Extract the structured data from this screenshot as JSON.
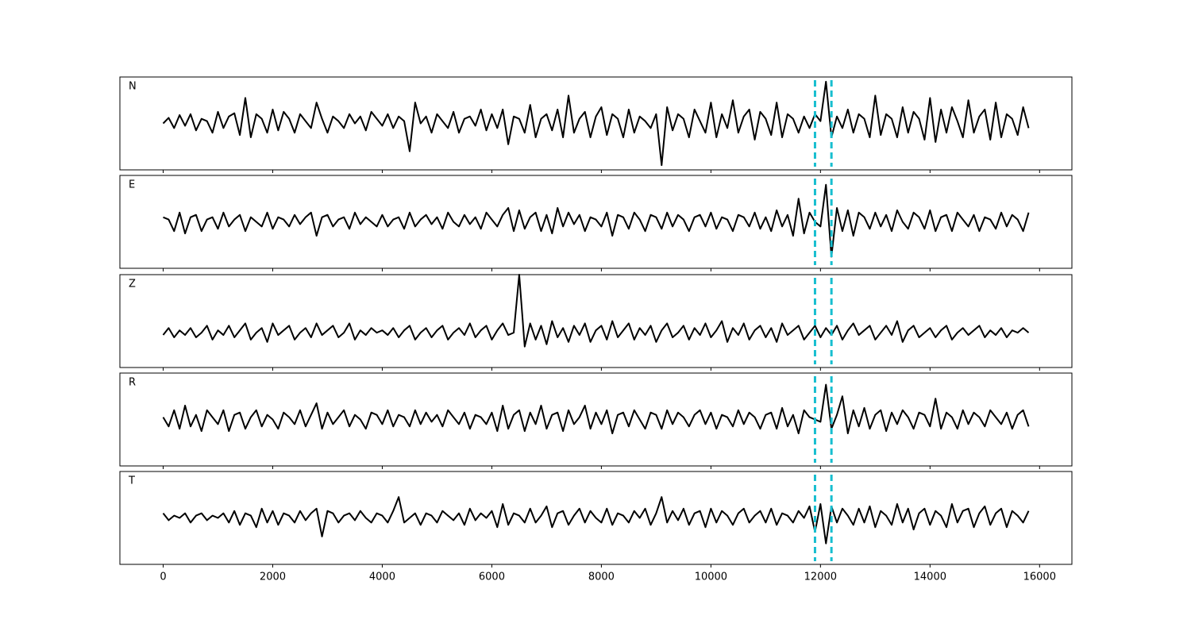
{
  "chart_data": {
    "type": "line",
    "x": [
      0,
      100,
      200,
      300,
      400,
      500,
      600,
      700,
      800,
      900,
      1000,
      1100,
      1200,
      1300,
      1400,
      1500,
      1600,
      1700,
      1800,
      1900,
      2000,
      2100,
      2200,
      2300,
      2400,
      2500,
      2600,
      2700,
      2800,
      2900,
      3000,
      3100,
      3200,
      3300,
      3400,
      3500,
      3600,
      3700,
      3800,
      3900,
      4000,
      4100,
      4200,
      4300,
      4400,
      4500,
      4600,
      4700,
      4800,
      4900,
      5000,
      5100,
      5200,
      5300,
      5400,
      5500,
      5600,
      5700,
      5800,
      5900,
      6000,
      6100,
      6200,
      6300,
      6400,
      6500,
      6600,
      6700,
      6800,
      6900,
      7000,
      7100,
      7200,
      7300,
      7400,
      7500,
      7600,
      7700,
      7800,
      7900,
      8000,
      8100,
      8200,
      8300,
      8400,
      8500,
      8600,
      8700,
      8800,
      8900,
      9000,
      9100,
      9200,
      9300,
      9400,
      9500,
      9600,
      9700,
      9800,
      9900,
      10000,
      10100,
      10200,
      10300,
      10400,
      10500,
      10600,
      10700,
      10800,
      10900,
      11000,
      11100,
      11200,
      11300,
      11400,
      11500,
      11600,
      11700,
      11800,
      11900,
      12000,
      12100,
      12200,
      12300,
      12400,
      12500,
      12600,
      12700,
      12800,
      12900,
      13000,
      13100,
      13200,
      13300,
      13400,
      13500,
      13600,
      13700,
      13800,
      13900,
      14000,
      14100,
      14200,
      14300,
      14400,
      14500,
      14600,
      14700,
      14800,
      14900,
      15000,
      15100,
      15200,
      15300,
      15400,
      15500,
      15600,
      15700,
      15800
    ],
    "xlim": [
      -790,
      16590
    ],
    "xticks": [
      0,
      2000,
      4000,
      6000,
      8000,
      10000,
      12000,
      14000,
      16000
    ],
    "ylim": [
      -1,
      1
    ],
    "vlines": [
      11900,
      12200
    ],
    "vline_color": "#17becf",
    "series": [
      {
        "name": "N",
        "color": "#000000",
        "values": [
          0.0,
          0.12,
          -0.1,
          0.18,
          -0.05,
          0.2,
          -0.15,
          0.1,
          0.05,
          -0.2,
          0.25,
          -0.1,
          0.15,
          0.22,
          -0.25,
          0.55,
          -0.3,
          0.2,
          0.1,
          -0.2,
          0.3,
          -0.15,
          0.25,
          0.1,
          -0.2,
          0.2,
          0.05,
          -0.1,
          0.45,
          0.1,
          -0.2,
          0.15,
          0.05,
          -0.1,
          0.2,
          0.0,
          0.15,
          -0.15,
          0.25,
          0.1,
          -0.05,
          0.2,
          -0.1,
          0.15,
          0.05,
          -0.6,
          0.45,
          0.0,
          0.15,
          -0.2,
          0.2,
          0.05,
          -0.1,
          0.25,
          -0.2,
          0.1,
          0.15,
          -0.05,
          0.3,
          -0.15,
          0.2,
          -0.1,
          0.3,
          -0.45,
          0.15,
          0.1,
          -0.2,
          0.4,
          -0.3,
          0.1,
          0.2,
          -0.15,
          0.3,
          -0.3,
          0.6,
          -0.2,
          0.1,
          0.25,
          -0.3,
          0.15,
          0.35,
          -0.25,
          0.2,
          0.1,
          -0.3,
          0.3,
          -0.2,
          0.15,
          0.05,
          -0.1,
          0.2,
          -0.9,
          0.35,
          -0.15,
          0.2,
          0.1,
          -0.3,
          0.3,
          0.05,
          -0.2,
          0.45,
          -0.3,
          0.2,
          -0.1,
          0.5,
          -0.2,
          0.15,
          0.3,
          -0.35,
          0.25,
          0.1,
          -0.25,
          0.45,
          -0.3,
          0.2,
          0.1,
          -0.2,
          0.15,
          -0.1,
          0.2,
          0.05,
          0.9,
          -0.3,
          0.15,
          -0.1,
          0.3,
          -0.2,
          0.2,
          0.1,
          -0.3,
          0.6,
          -0.25,
          0.2,
          0.1,
          -0.3,
          0.35,
          -0.2,
          0.25,
          0.1,
          -0.35,
          0.55,
          -0.4,
          0.3,
          -0.2,
          0.35,
          0.05,
          -0.3,
          0.5,
          -0.2,
          0.15,
          0.3,
          -0.35,
          0.45,
          -0.3,
          0.2,
          0.1,
          -0.25,
          0.35,
          -0.1
        ]
      },
      {
        "name": "E",
        "color": "#000000",
        "values": [
          0.1,
          0.05,
          -0.2,
          0.2,
          -0.25,
          0.1,
          0.15,
          -0.2,
          0.05,
          0.1,
          -0.15,
          0.2,
          -0.1,
          0.05,
          0.15,
          -0.2,
          0.1,
          0.0,
          -0.1,
          0.2,
          -0.15,
          0.1,
          0.05,
          -0.1,
          0.15,
          -0.05,
          0.1,
          0.2,
          -0.3,
          0.1,
          0.15,
          -0.1,
          0.05,
          0.1,
          -0.15,
          0.2,
          -0.05,
          0.1,
          0.0,
          -0.1,
          0.15,
          -0.1,
          0.05,
          0.1,
          -0.15,
          0.2,
          -0.1,
          0.05,
          0.15,
          -0.05,
          0.1,
          -0.15,
          0.2,
          0.0,
          -0.1,
          0.15,
          -0.05,
          0.1,
          -0.15,
          0.2,
          0.05,
          -0.1,
          0.15,
          0.3,
          -0.2,
          0.25,
          -0.15,
          0.1,
          0.2,
          -0.2,
          0.15,
          -0.25,
          0.3,
          -0.1,
          0.2,
          -0.05,
          0.15,
          -0.2,
          0.1,
          0.05,
          -0.1,
          0.2,
          -0.3,
          0.15,
          0.1,
          -0.15,
          0.2,
          0.05,
          -0.2,
          0.15,
          0.1,
          -0.15,
          0.2,
          -0.1,
          0.15,
          0.05,
          -0.2,
          0.1,
          0.15,
          -0.1,
          0.2,
          -0.15,
          0.1,
          0.05,
          -0.2,
          0.15,
          0.1,
          -0.1,
          0.2,
          -0.15,
          0.1,
          -0.2,
          0.25,
          -0.1,
          0.15,
          -0.3,
          0.5,
          -0.25,
          0.2,
          0.0,
          -0.1,
          0.8,
          -0.75,
          0.3,
          -0.2,
          0.25,
          -0.3,
          0.2,
          0.1,
          -0.15,
          0.2,
          -0.1,
          0.15,
          -0.2,
          0.25,
          0.0,
          -0.15,
          0.2,
          0.1,
          -0.15,
          0.25,
          -0.2,
          0.1,
          0.15,
          -0.2,
          0.2,
          0.05,
          -0.1,
          0.15,
          -0.2,
          0.1,
          0.05,
          -0.15,
          0.2,
          -0.1,
          0.15,
          0.05,
          -0.2,
          0.2
        ]
      },
      {
        "name": "Z",
        "color": "#000000",
        "values": [
          -0.3,
          -0.15,
          -0.35,
          -0.2,
          -0.3,
          -0.15,
          -0.35,
          -0.25,
          -0.1,
          -0.4,
          -0.2,
          -0.3,
          -0.1,
          -0.35,
          -0.2,
          -0.05,
          -0.4,
          -0.25,
          -0.15,
          -0.45,
          -0.05,
          -0.3,
          -0.2,
          -0.1,
          -0.4,
          -0.25,
          -0.15,
          -0.35,
          -0.05,
          -0.3,
          -0.2,
          -0.1,
          -0.35,
          -0.25,
          -0.05,
          -0.4,
          -0.2,
          -0.3,
          -0.15,
          -0.25,
          -0.2,
          -0.3,
          -0.15,
          -0.35,
          -0.2,
          -0.1,
          -0.4,
          -0.25,
          -0.15,
          -0.35,
          -0.2,
          -0.1,
          -0.4,
          -0.25,
          -0.15,
          -0.3,
          -0.05,
          -0.35,
          -0.2,
          -0.1,
          -0.4,
          -0.2,
          -0.05,
          -0.3,
          -0.25,
          1.0,
          -0.55,
          -0.05,
          -0.4,
          -0.1,
          -0.5,
          0.0,
          -0.35,
          -0.15,
          -0.45,
          -0.1,
          -0.3,
          -0.05,
          -0.45,
          -0.2,
          -0.1,
          -0.4,
          0.0,
          -0.35,
          -0.2,
          -0.05,
          -0.4,
          -0.15,
          -0.3,
          -0.1,
          -0.45,
          -0.2,
          -0.05,
          -0.35,
          -0.25,
          -0.1,
          -0.4,
          -0.15,
          -0.3,
          -0.05,
          -0.35,
          -0.2,
          0.0,
          -0.45,
          -0.15,
          -0.3,
          -0.05,
          -0.4,
          -0.2,
          -0.1,
          -0.35,
          -0.15,
          -0.45,
          -0.05,
          -0.3,
          -0.2,
          -0.1,
          -0.4,
          -0.25,
          -0.1,
          -0.35,
          -0.15,
          -0.3,
          -0.1,
          -0.4,
          -0.2,
          -0.05,
          -0.3,
          -0.2,
          -0.1,
          -0.4,
          -0.25,
          -0.1,
          -0.3,
          0.0,
          -0.45,
          -0.2,
          -0.1,
          -0.35,
          -0.25,
          -0.15,
          -0.35,
          -0.2,
          -0.1,
          -0.4,
          -0.25,
          -0.15,
          -0.3,
          -0.2,
          -0.1,
          -0.35,
          -0.2,
          -0.3,
          -0.15,
          -0.35,
          -0.2,
          -0.25,
          -0.15,
          -0.25
        ]
      },
      {
        "name": "R",
        "color": "#000000",
        "values": [
          0.05,
          -0.15,
          0.2,
          -0.2,
          0.3,
          -0.15,
          0.1,
          -0.25,
          0.2,
          0.05,
          -0.1,
          0.2,
          -0.25,
          0.1,
          0.15,
          -0.2,
          0.05,
          0.2,
          -0.15,
          0.1,
          0.0,
          -0.2,
          0.15,
          0.05,
          -0.1,
          0.2,
          -0.15,
          0.1,
          0.35,
          -0.2,
          0.15,
          -0.1,
          0.05,
          0.2,
          -0.15,
          0.1,
          0.0,
          -0.2,
          0.15,
          0.1,
          -0.1,
          0.2,
          -0.15,
          0.1,
          0.05,
          -0.15,
          0.2,
          -0.1,
          0.15,
          -0.05,
          0.1,
          -0.15,
          0.2,
          0.05,
          -0.1,
          0.15,
          -0.2,
          0.1,
          0.05,
          -0.1,
          0.15,
          -0.25,
          0.3,
          -0.2,
          0.1,
          0.2,
          -0.25,
          0.15,
          -0.1,
          0.3,
          -0.2,
          0.1,
          0.15,
          -0.25,
          0.2,
          -0.1,
          0.05,
          0.3,
          -0.2,
          0.15,
          -0.1,
          0.2,
          -0.3,
          0.1,
          0.15,
          -0.15,
          0.2,
          0.0,
          -0.2,
          0.15,
          0.1,
          -0.2,
          0.2,
          -0.1,
          0.15,
          0.05,
          -0.15,
          0.1,
          0.2,
          -0.1,
          0.15,
          -0.2,
          0.1,
          0.05,
          -0.15,
          0.2,
          -0.1,
          0.15,
          0.05,
          -0.2,
          0.1,
          0.15,
          -0.2,
          0.25,
          -0.15,
          0.1,
          -0.3,
          0.2,
          0.05,
          0.0,
          -0.05,
          0.75,
          -0.2,
          0.1,
          0.5,
          -0.3,
          0.2,
          -0.15,
          0.25,
          -0.2,
          0.1,
          0.2,
          -0.25,
          0.15,
          -0.1,
          0.2,
          0.05,
          -0.2,
          0.15,
          0.1,
          -0.15,
          0.45,
          -0.2,
          0.15,
          0.05,
          -0.2,
          0.2,
          -0.1,
          0.15,
          0.05,
          -0.15,
          0.2,
          0.05,
          -0.1,
          0.15,
          -0.2,
          0.1,
          0.2,
          -0.15
        ]
      },
      {
        "name": "T",
        "color": "#000000",
        "values": [
          0.1,
          -0.05,
          0.05,
          0.0,
          0.1,
          -0.1,
          0.05,
          0.1,
          -0.05,
          0.05,
          0.0,
          0.1,
          -0.1,
          0.15,
          -0.15,
          0.1,
          0.05,
          -0.2,
          0.2,
          -0.1,
          0.15,
          -0.15,
          0.1,
          0.05,
          -0.1,
          0.15,
          -0.05,
          0.1,
          0.2,
          -0.4,
          0.15,
          0.1,
          -0.1,
          0.05,
          0.1,
          -0.05,
          0.15,
          0.0,
          -0.1,
          0.1,
          0.05,
          -0.1,
          0.15,
          0.45,
          -0.1,
          0.0,
          0.1,
          -0.15,
          0.1,
          0.05,
          -0.1,
          0.15,
          0.05,
          -0.05,
          0.1,
          -0.15,
          0.2,
          -0.05,
          0.1,
          0.0,
          0.15,
          -0.2,
          0.3,
          -0.15,
          0.1,
          0.05,
          -0.1,
          0.2,
          -0.1,
          0.05,
          0.25,
          -0.2,
          0.1,
          0.15,
          -0.15,
          0.05,
          0.2,
          -0.1,
          0.15,
          0.0,
          -0.1,
          0.2,
          -0.15,
          0.1,
          0.05,
          -0.1,
          0.15,
          0.0,
          0.2,
          -0.15,
          0.1,
          0.45,
          -0.1,
          0.15,
          -0.05,
          0.2,
          -0.15,
          0.1,
          0.15,
          -0.2,
          0.2,
          -0.1,
          0.15,
          0.05,
          -0.15,
          0.1,
          0.2,
          -0.1,
          0.05,
          0.15,
          -0.1,
          0.2,
          -0.15,
          0.1,
          0.05,
          -0.1,
          0.15,
          0.0,
          0.25,
          -0.3,
          0.3,
          -0.55,
          0.25,
          -0.1,
          0.2,
          0.05,
          -0.15,
          0.2,
          -0.1,
          0.25,
          -0.2,
          0.15,
          0.05,
          -0.15,
          0.3,
          -0.1,
          0.2,
          -0.25,
          0.1,
          0.2,
          -0.15,
          0.15,
          0.05,
          -0.2,
          0.3,
          -0.1,
          0.15,
          0.2,
          -0.2,
          0.1,
          0.25,
          -0.15,
          0.1,
          0.2,
          -0.2,
          0.15,
          0.05,
          -0.1,
          0.15
        ]
      }
    ]
  }
}
